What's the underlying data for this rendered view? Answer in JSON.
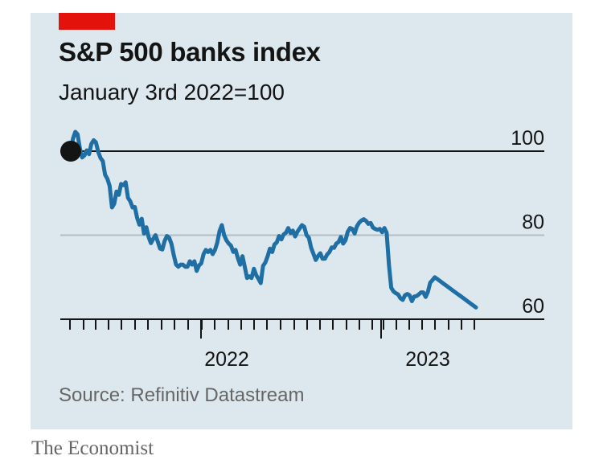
{
  "chart_data": {
    "type": "line",
    "title": "S&P 500 banks index",
    "subtitle": "January 3rd 2022=100",
    "source": "Source: Refinitiv Datastream",
    "publisher": "The Economist",
    "x_ticks": [
      "2022",
      "2023"
    ],
    "y_ticks": [
      100,
      80,
      60
    ],
    "ylim": [
      60,
      104
    ],
    "baseline": 100,
    "grid": true,
    "colors": {
      "line": "#1f6fa5",
      "accent": "#e3120b",
      "panel": "#dce8ee",
      "gridline": "#b2bec4",
      "baseline": "#141414",
      "marker": "#141414"
    },
    "series": [
      {
        "name": "S&P 500 banks index",
        "x": [
          0,
          1,
          2,
          3,
          4,
          5,
          6,
          7,
          8,
          9,
          10,
          11,
          12,
          13,
          14,
          15,
          16,
          17,
          18,
          19,
          20,
          21,
          22,
          23,
          24,
          25,
          26,
          27,
          28,
          29,
          30,
          31,
          32,
          33,
          34,
          35,
          36,
          37,
          38,
          39,
          40,
          41,
          42,
          43,
          44,
          45,
          46,
          47,
          48,
          49,
          50,
          51,
          52,
          53,
          54,
          55,
          56,
          57,
          58,
          59,
          60,
          61,
          62,
          63,
          64,
          65,
          66,
          67,
          68,
          69,
          70,
          71,
          72,
          73,
          74,
          75,
          76,
          77,
          78,
          79,
          80,
          81,
          82,
          83,
          84,
          85,
          86,
          87,
          88,
          89,
          90,
          91,
          92,
          93,
          94,
          95,
          96,
          97,
          98,
          99,
          100,
          101,
          102,
          103,
          104,
          105,
          106,
          107,
          108,
          109,
          110,
          111,
          112,
          113,
          114,
          115,
          116,
          117,
          118,
          119,
          120,
          121,
          122,
          123,
          124,
          125,
          126,
          127,
          128,
          129,
          130,
          131,
          132,
          133,
          134,
          135,
          136,
          137,
          138,
          139,
          140,
          141,
          142,
          143,
          144,
          145,
          146,
          147,
          148,
          149,
          150,
          151,
          152,
          153,
          154,
          155,
          156,
          157,
          158,
          159,
          160,
          161,
          162,
          163,
          164,
          165,
          166,
          167,
          168,
          169,
          170,
          171,
          172,
          173,
          174,
          175,
          176,
          177
        ],
        "values": [
          100.0,
          103.0,
          104.6,
          104.0,
          100.6,
          98.5,
          99.0,
          100.2,
          99.3,
          101.7,
          102.6,
          102.1,
          99.8,
          98.4,
          97.6,
          94.4,
          93.4,
          91.7,
          86.6,
          87.5,
          90.4,
          89.6,
          92.2,
          91.9,
          92.6,
          88.9,
          88.1,
          86.6,
          86.7,
          84.1,
          82.5,
          83.9,
          80.4,
          81.9,
          79.6,
          78.1,
          79.1,
          80.0,
          78.5,
          76.8,
          76.6,
          78.6,
          79.8,
          79.4,
          77.9,
          75.3,
          73.0,
          72.5,
          73.0,
          73.0,
          72.5,
          72.5,
          73.8,
          73.0,
          73.8,
          71.5,
          72.8,
          73.3,
          75.5,
          76.5,
          76.0,
          76.5,
          75.5,
          76.5,
          78.2,
          81.0,
          82.4,
          80.0,
          78.8,
          78.0,
          77.5,
          76.0,
          76.5,
          74.5,
          73.0,
          75.0,
          72.5,
          69.8,
          70.2,
          69.8,
          72.0,
          70.5,
          69.6,
          68.6,
          72.7,
          73.5,
          75.0,
          76.8,
          76.0,
          77.8,
          78.3,
          79.8,
          79.0,
          80.2,
          80.6,
          81.7,
          80.5,
          81.1,
          79.7,
          80.8,
          81.6,
          82.4,
          82.0,
          80.0,
          79.4,
          77.0,
          75.6,
          74.1,
          75.0,
          75.7,
          74.4,
          74.4,
          75.4,
          76.0,
          77.1,
          77.0,
          78.0,
          78.4,
          79.6,
          78.0,
          78.8,
          80.8,
          81.7,
          81.5,
          80.4,
          82.1,
          83.0,
          83.5,
          83.8,
          83.4,
          82.7,
          82.9,
          81.8,
          81.5,
          81.3,
          81.5,
          80.7,
          81.7,
          80.6,
          72.9,
          67.5,
          66.6,
          66.2,
          65.9,
          65.0,
          64.6,
          65.7,
          66.0,
          65.7,
          64.3,
          65.4,
          65.5,
          65.9,
          66.4,
          66.4,
          65.3,
          66.5,
          68.7,
          69.3,
          70.0,
          69.6,
          69.2,
          68.8,
          68.4,
          68.0,
          67.6,
          67.2,
          66.8,
          66.4,
          66.0,
          65.6,
          65.2,
          64.8,
          64.4,
          64.0,
          63.6,
          63.2,
          62.8
        ]
      }
    ]
  }
}
